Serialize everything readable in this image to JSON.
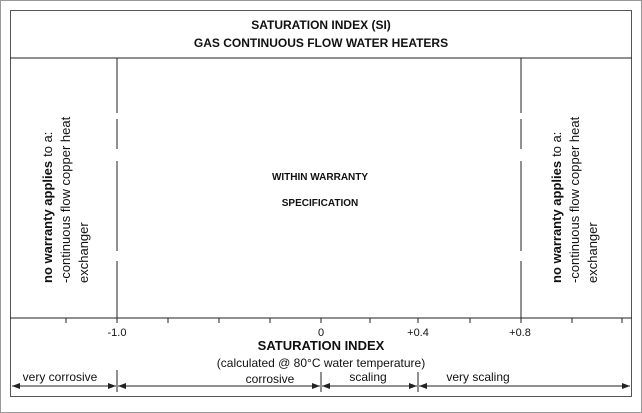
{
  "header": {
    "title": "SATURATION INDEX (SI)",
    "subtitle": "GAS CONTINUOUS FLOW WATER HEATERS"
  },
  "left_note": {
    "emphasis": "no warranty applies",
    "text": "to a:",
    "lines": [
      "-continuous flow copper heat",
      "exchanger"
    ]
  },
  "right_note": {
    "emphasis": "no warranty applies",
    "text": "to a:",
    "lines": [
      "-continuous flow copper heat",
      "exchanger"
    ]
  },
  "center": [
    "WITHIN WARRANTY",
    "SPECIFICATION"
  ],
  "axis": {
    "title": "SATURATION INDEX",
    "subtitle": "(calculated @ 80°C water temperature)",
    "ticks": [
      "-1.0",
      "0",
      "+0.4",
      "+0.8"
    ]
  },
  "zones": [
    "very corrosive",
    "corrosive",
    "scaling",
    "very scaling"
  ]
}
